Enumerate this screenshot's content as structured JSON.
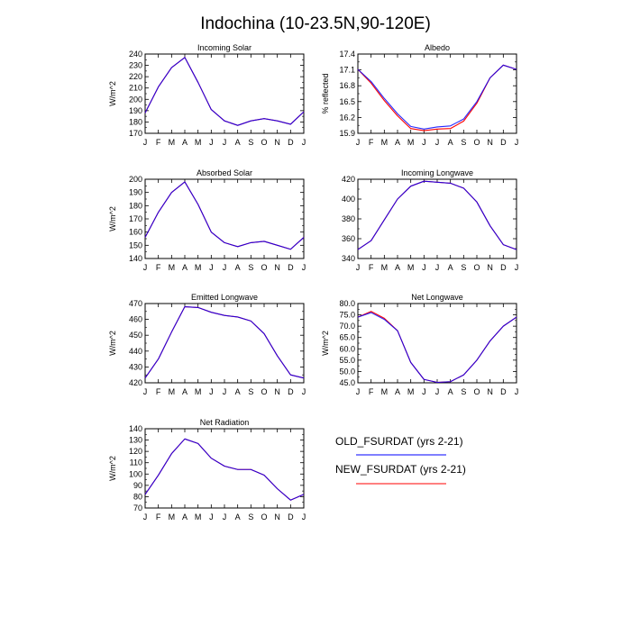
{
  "page_title": "Indochina (10-23.5N,90-120E)",
  "legend": [
    {
      "label": "OLD_FSURDAT (yrs 2-21)",
      "color": "#0000ff"
    },
    {
      "label": "NEW_FSURDAT (yrs 2-21)",
      "color": "#ff0000"
    }
  ],
  "chart_data": [
    {
      "type": "line",
      "title": "Incoming Solar",
      "ylabel": "W/m^2",
      "categories": [
        "J",
        "F",
        "M",
        "A",
        "M",
        "J",
        "J",
        "A",
        "S",
        "O",
        "N",
        "D",
        "J"
      ],
      "ylim": [
        170,
        240
      ],
      "yticks": [
        170,
        180,
        190,
        200,
        210,
        220,
        230,
        240
      ],
      "series": [
        {
          "name": "OLD_FSURDAT (yrs 2-21)",
          "color": "#0000ff",
          "values": [
            188,
            211,
            228,
            237,
            215,
            191,
            181,
            177,
            181,
            183,
            181,
            178,
            189
          ]
        },
        {
          "name": "NEW_FSURDAT (yrs 2-21)",
          "color": "#ff0000",
          "values": [
            188,
            211,
            228,
            237,
            215,
            191,
            181,
            177,
            181,
            183,
            181,
            178,
            189
          ]
        }
      ]
    },
    {
      "type": "line",
      "title": "Albedo",
      "ylabel": "% reflected",
      "categories": [
        "J",
        "F",
        "M",
        "A",
        "M",
        "J",
        "J",
        "A",
        "S",
        "O",
        "N",
        "D",
        "J"
      ],
      "ylim": [
        15.9,
        17.4
      ],
      "yticks": [
        15.9,
        16.2,
        16.5,
        16.8,
        17.1,
        17.4
      ],
      "series": [
        {
          "name": "OLD_FSURDAT (yrs 2-21)",
          "color": "#0000ff",
          "values": [
            17.11,
            16.88,
            16.56,
            16.27,
            16.03,
            15.98,
            16.02,
            16.04,
            16.17,
            16.5,
            16.95,
            17.19,
            17.11
          ]
        },
        {
          "name": "NEW_FSURDAT (yrs 2-21)",
          "color": "#ff0000",
          "values": [
            17.11,
            16.85,
            16.52,
            16.23,
            15.99,
            15.95,
            15.98,
            15.99,
            16.13,
            16.47,
            16.95,
            17.19,
            17.11
          ]
        }
      ]
    },
    {
      "type": "line",
      "title": "Absorbed Solar",
      "ylabel": "W/m^2",
      "categories": [
        "J",
        "F",
        "M",
        "A",
        "M",
        "J",
        "J",
        "A",
        "S",
        "O",
        "N",
        "D",
        "J"
      ],
      "ylim": [
        140,
        200
      ],
      "yticks": [
        140,
        150,
        160,
        170,
        180,
        190,
        200
      ],
      "series": [
        {
          "name": "OLD_FSURDAT (yrs 2-21)",
          "color": "#0000ff",
          "values": [
            156,
            175,
            190,
            198,
            181,
            160,
            152,
            149,
            152,
            153,
            150,
            147,
            156
          ]
        },
        {
          "name": "NEW_FSURDAT (yrs 2-21)",
          "color": "#ff0000",
          "values": [
            156,
            175,
            190,
            198,
            181,
            160,
            152,
            149,
            152,
            153,
            150,
            147,
            156
          ]
        }
      ]
    },
    {
      "type": "line",
      "title": "Incoming Longwave",
      "ylabel": "",
      "categories": [
        "J",
        "F",
        "M",
        "A",
        "M",
        "J",
        "J",
        "A",
        "S",
        "O",
        "N",
        "D",
        "J"
      ],
      "ylim": [
        340,
        420
      ],
      "yticks": [
        340,
        360,
        380,
        400,
        420
      ],
      "series": [
        {
          "name": "OLD_FSURDAT (yrs 2-21)",
          "color": "#0000ff",
          "values": [
            349,
            358,
            379,
            400,
            413,
            418,
            417,
            416,
            411,
            397,
            373,
            354,
            349
          ]
        },
        {
          "name": "NEW_FSURDAT (yrs 2-21)",
          "color": "#ff0000",
          "values": [
            349,
            358,
            379,
            400,
            413,
            418,
            417,
            416,
            411,
            397,
            373,
            354,
            349
          ]
        }
      ]
    },
    {
      "type": "line",
      "title": "Emitted Longwave",
      "ylabel": "W/m^2",
      "categories": [
        "J",
        "F",
        "M",
        "A",
        "M",
        "J",
        "J",
        "A",
        "S",
        "O",
        "N",
        "D",
        "J"
      ],
      "ylim": [
        420,
        470
      ],
      "yticks": [
        420,
        430,
        440,
        450,
        460,
        470
      ],
      "series": [
        {
          "name": "OLD_FSURDAT (yrs 2-21)",
          "color": "#0000ff",
          "values": [
            423,
            435,
            452,
            468,
            467.5,
            464.5,
            462.5,
            461.5,
            459,
            451,
            437,
            425,
            423
          ]
        },
        {
          "name": "NEW_FSURDAT (yrs 2-21)",
          "color": "#ff0000",
          "values": [
            423,
            435,
            452,
            468,
            467.5,
            464.5,
            462.5,
            461.5,
            459,
            451,
            437,
            425,
            423
          ]
        }
      ]
    },
    {
      "type": "line",
      "title": "Net Longwave",
      "ylabel": "W/m^2",
      "categories": [
        "J",
        "F",
        "M",
        "A",
        "M",
        "J",
        "J",
        "A",
        "S",
        "O",
        "N",
        "D",
        "J"
      ],
      "ylim": [
        45.0,
        80.0
      ],
      "yticks": [
        "45.0",
        "50.0",
        "55.0",
        "60.0",
        "65.0",
        "70.0",
        "75.0",
        "80.0"
      ],
      "series": [
        {
          "name": "OLD_FSURDAT (yrs 2-21)",
          "color": "#0000ff",
          "values": [
            74,
            76,
            73,
            68,
            54,
            46.5,
            45.2,
            45.5,
            48.5,
            55,
            63.5,
            70,
            74
          ]
        },
        {
          "name": "NEW_FSURDAT (yrs 2-21)",
          "color": "#ff0000",
          "values": [
            74,
            76.5,
            73.5,
            68,
            54,
            46.5,
            45.2,
            45.5,
            48.5,
            55,
            63.5,
            70,
            74
          ]
        }
      ]
    },
    {
      "type": "line",
      "title": "Net Radiation",
      "ylabel": "W/m^2",
      "categories": [
        "J",
        "F",
        "M",
        "A",
        "M",
        "J",
        "J",
        "A",
        "S",
        "O",
        "N",
        "D",
        "J"
      ],
      "ylim": [
        70,
        140
      ],
      "yticks": [
        70,
        80,
        90,
        100,
        110,
        120,
        130,
        140
      ],
      "series": [
        {
          "name": "OLD_FSURDAT (yrs 2-21)",
          "color": "#0000ff",
          "values": [
            82,
            99,
            118,
            131,
            127,
            114,
            107,
            104,
            104,
            99,
            87,
            77,
            82
          ]
        },
        {
          "name": "NEW_FSURDAT (yrs 2-21)",
          "color": "#ff0000",
          "values": [
            82,
            99,
            118,
            131,
            127,
            114,
            107,
            104,
            104,
            99,
            87,
            77,
            82
          ]
        }
      ]
    }
  ]
}
